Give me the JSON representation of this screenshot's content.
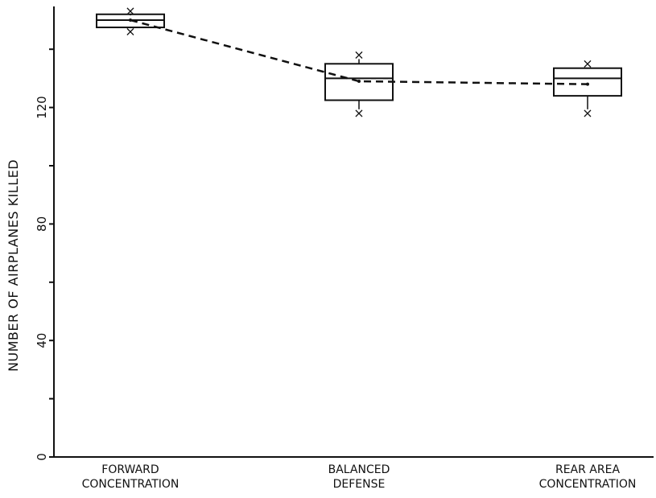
{
  "chart_data": {
    "type": "box",
    "ylabel": "NUMBER OF AIRPLANES KILLED",
    "xlabel": "",
    "ylim": [
      0,
      152
    ],
    "yticks_labeled": [
      0,
      40,
      80,
      120
    ],
    "yticks_minor": [
      20,
      60,
      100,
      140
    ],
    "categories": [
      [
        "FORWARD",
        "CONCENTRATION"
      ],
      [
        "BALANCED",
        "DEFENSE"
      ],
      [
        "REAR AREA",
        "CONCENTRATION"
      ]
    ],
    "boxes": [
      {
        "q1": 147.5,
        "median": 150,
        "q3": 152,
        "mean": 150,
        "min": 146,
        "max": 153
      },
      {
        "q1": 122.5,
        "median": 130,
        "q3": 135,
        "mean": 129,
        "min": 118,
        "max": 138
      },
      {
        "q1": 124,
        "median": 130,
        "q3": 133.5,
        "mean": 128,
        "min": 118,
        "max": 135
      }
    ],
    "mean_line_style": "dashed",
    "grid": false,
    "legend": "none"
  }
}
